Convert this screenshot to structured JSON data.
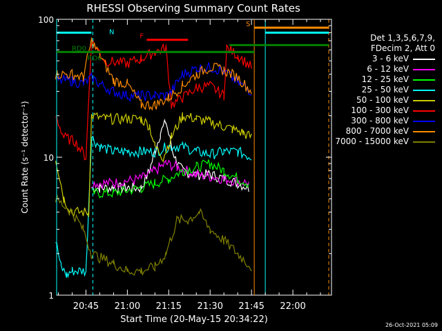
{
  "chart_data": {
    "type": "line",
    "title": "RHESSI Observing Summary Count Rates",
    "ylabel": "Count Rate (s⁻¹ detector⁻¹)",
    "xlabel": "Start Time (20-May-15 20:34:22)",
    "yscale": "log",
    "ylim": [
      1,
      100
    ],
    "xlim": [
      "20:34:22",
      "22:14:00"
    ],
    "x_ticks": [
      "20:45",
      "21:00",
      "21:15",
      "21:30",
      "21:45",
      "22:00"
    ],
    "y_tick_labels": [
      "1",
      "10",
      "100"
    ],
    "detector_info": [
      "Det 1,3,5,6,7,9,",
      "FDecim 2, Att 0"
    ],
    "series": [
      {
        "name": "3 - 6 keV",
        "color": "#ffffff",
        "x": [
          "20:47",
          "20:50",
          "20:55",
          "21:00",
          "21:05",
          "21:08",
          "21:10",
          "21:12",
          "21:14",
          "21:16",
          "21:18",
          "21:20",
          "21:25",
          "21:30",
          "21:35",
          "21:40",
          "21:44"
        ],
        "y": [
          6,
          6,
          6,
          6,
          6,
          8,
          11,
          15,
          18,
          12,
          9,
          8,
          7.5,
          7.5,
          7,
          6.5,
          6
        ]
      },
      {
        "name": "6 - 12 keV",
        "color": "#ff00ff",
        "x": [
          "20:47",
          "20:55",
          "21:05",
          "21:10",
          "21:14",
          "21:18",
          "21:25",
          "21:35",
          "21:44"
        ],
        "y": [
          6.5,
          6.5,
          7,
          8,
          9,
          8.5,
          7.5,
          7,
          6.5
        ]
      },
      {
        "name": "12 - 25 keV",
        "color": "#00ff00",
        "x": [
          "20:47",
          "20:55",
          "21:05",
          "21:10",
          "21:15",
          "21:20",
          "21:25",
          "21:30",
          "21:35",
          "21:40",
          "21:44"
        ],
        "y": [
          5.5,
          5.5,
          6,
          6.5,
          7,
          8,
          8.5,
          9,
          8,
          7,
          6.5
        ]
      },
      {
        "name": "25 - 50 keV",
        "color": "#00ffff",
        "x": [
          "20:34",
          "20:36",
          "20:38",
          "20:40",
          "20:45",
          "20:47",
          "20:50",
          "20:55",
          "21:00",
          "21:05",
          "21:10",
          "21:15",
          "21:20",
          "21:25",
          "21:30",
          "21:35",
          "21:40",
          "21:45"
        ],
        "y": [
          2.5,
          1.6,
          1.4,
          1.5,
          1.5,
          14,
          12,
          11,
          11,
          11,
          11,
          12,
          12,
          11,
          10.5,
          11,
          11,
          10
        ]
      },
      {
        "name": "50 - 100 keV",
        "color": "#cccc00",
        "x": [
          "20:34",
          "20:37",
          "20:40",
          "20:46",
          "20:47",
          "20:52",
          "21:00",
          "21:05",
          "21:08",
          "21:10",
          "21:13",
          "21:16",
          "21:20",
          "21:25",
          "21:30",
          "21:34",
          "21:38",
          "21:42",
          "21:45"
        ],
        "y": [
          10,
          5,
          4,
          4,
          20,
          19,
          19,
          19,
          17,
          12,
          10,
          14,
          20,
          19,
          18,
          17,
          16,
          15,
          14
        ]
      },
      {
        "name": "100 - 300 keV",
        "color": "#ff0000",
        "x": [
          "20:34",
          "20:37",
          "20:41",
          "20:45",
          "20:47",
          "20:52",
          "21:00",
          "21:05",
          "21:10",
          "21:14",
          "21:16",
          "21:20",
          "21:25",
          "21:30",
          "21:35",
          "21:36",
          "21:40",
          "21:45"
        ],
        "y": [
          20,
          14,
          13,
          10,
          70,
          50,
          48,
          52,
          58,
          62,
          24,
          27,
          32,
          33,
          28,
          62,
          55,
          45
        ]
      },
      {
        "name": "300 - 800 keV",
        "color": "#0000ff",
        "x": [
          "20:34",
          "20:40",
          "20:44",
          "20:47",
          "20:50",
          "20:55",
          "21:00",
          "21:05",
          "21:10",
          "21:15",
          "21:20",
          "21:25",
          "21:30",
          "21:35",
          "21:40",
          "21:45"
        ],
        "y": [
          36,
          36,
          34,
          38,
          34,
          30,
          28,
          28,
          28,
          28,
          40,
          44,
          45,
          42,
          35,
          30
        ]
      },
      {
        "name": "800 - 7000 keV",
        "color": "#ff8c00",
        "x": [
          "20:34",
          "20:40",
          "20:44",
          "20:47",
          "20:50",
          "20:55",
          "21:00",
          "21:05",
          "21:10",
          "21:15",
          "21:20",
          "21:25",
          "21:30",
          "21:35",
          "21:40",
          "21:45"
        ],
        "y": [
          40,
          40,
          38,
          70,
          55,
          36,
          34,
          24,
          24,
          27,
          33,
          40,
          45,
          43,
          38,
          30
        ]
      },
      {
        "name": "7000 - 15000 keV",
        "color": "#808000",
        "x": [
          "20:34",
          "20:40",
          "20:44",
          "20:47",
          "20:55",
          "21:00",
          "21:05",
          "21:10",
          "21:14",
          "21:18",
          "21:22",
          "21:26",
          "21:30",
          "21:35",
          "21:40",
          "21:45"
        ],
        "y": [
          5,
          4,
          3,
          2,
          1.7,
          1.5,
          1.5,
          1.6,
          2,
          3.5,
          3.5,
          4,
          3,
          2.5,
          2,
          1.6
        ]
      }
    ],
    "flag_bars": [
      {
        "label": "N",
        "color": "#00ffff",
        "x": [
          "20:34:22",
          "20:47:00"
        ],
        "y": 80
      },
      {
        "label": "F",
        "color": "#ff0000",
        "x": [
          "21:07:00",
          "21:22:00"
        ],
        "y": 71
      },
      {
        "label": "S",
        "color": "#ff8c00",
        "x": [
          "21:46:00",
          "22:13:00"
        ],
        "y": 87
      },
      {
        "label": "",
        "color": "#00ffff",
        "x": [
          "21:50:00",
          "22:13:00"
        ],
        "y": 80
      },
      {
        "label": "RD0",
        "color": "#008000",
        "x": [
          "20:34:22",
          "21:46:00"
        ],
        "y": 58
      },
      {
        "label": "RD6",
        "color": "#008000",
        "x": [
          "20:40:00",
          "21:46:00"
        ],
        "y": 58
      },
      {
        "label": "",
        "color": "#008000",
        "x": [
          "21:37:00",
          "22:13:00"
        ],
        "y": 65
      }
    ],
    "markers": [
      {
        "kind": "solid",
        "color": "#00ffff",
        "x": "20:34:22"
      },
      {
        "kind": "dashed",
        "color": "#00ffff",
        "x": "20:47:30"
      },
      {
        "kind": "solid",
        "color": "#ff8c00",
        "x": "21:46:00"
      },
      {
        "kind": "solid",
        "color": "#00ffff",
        "x": "21:50:00"
      },
      {
        "kind": "dashed",
        "color": "#ff8c00",
        "x": "22:13:00"
      }
    ],
    "grid": false,
    "legend_position": "right"
  },
  "footer": {
    "timestamp": "26-Oct-2021 05:09"
  }
}
